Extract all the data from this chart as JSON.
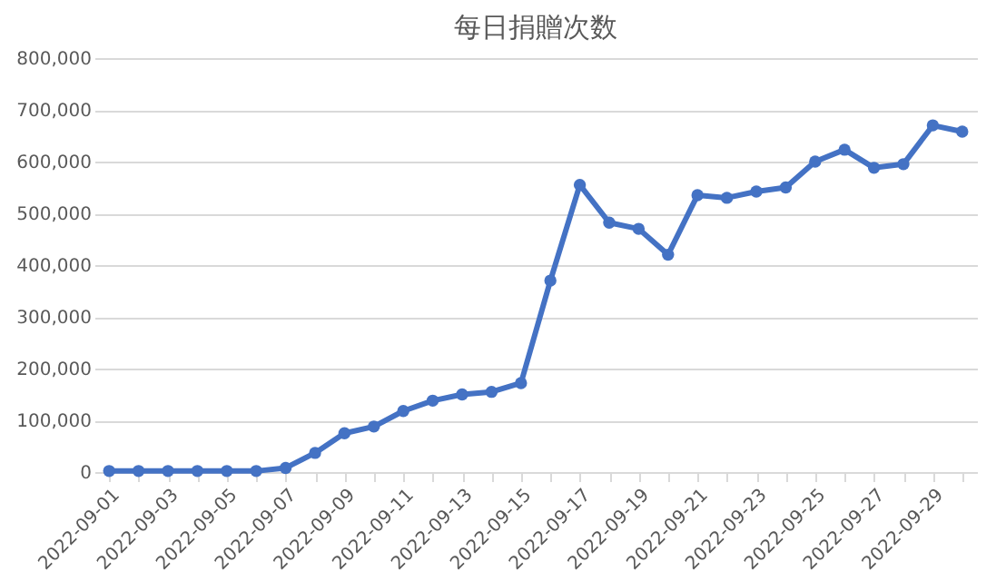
{
  "chart_data": {
    "type": "line",
    "title": "每日捐贈次数",
    "categories": [
      "2022-09-01",
      null,
      "2022-09-03",
      null,
      "2022-09-05",
      null,
      "2022-09-07",
      null,
      "2022-09-09",
      null,
      "2022-09-11",
      null,
      "2022-09-13",
      null,
      "2022-09-15",
      null,
      "2022-09-17",
      null,
      "2022-09-19",
      null,
      "2022-09-21",
      null,
      "2022-09-23",
      null,
      "2022-09-25",
      null,
      "2022-09-27",
      null,
      "2022-09-29",
      null
    ],
    "series": [
      {
        "color": "#4472c4",
        "values": [
          2000,
          2000,
          2000,
          2000,
          2000,
          2000,
          8000,
          37000,
          75000,
          88000,
          118000,
          138000,
          150000,
          155000,
          172000,
          370000,
          555000,
          482000,
          470000,
          420000,
          535000,
          530000,
          542000,
          550000,
          600000,
          623000,
          588000,
          595000,
          670000,
          658000
        ]
      }
    ],
    "ylim": [
      0,
      800000
    ],
    "yticks": [
      {
        "value": 0,
        "label": "0"
      },
      {
        "value": 100000,
        "label": "100,000"
      },
      {
        "value": 200000,
        "label": "200,000"
      },
      {
        "value": 300000,
        "label": "300,000"
      },
      {
        "value": 400000,
        "label": "400,000"
      },
      {
        "value": 500000,
        "label": "500,000"
      },
      {
        "value": 600000,
        "label": "600,000"
      },
      {
        "value": 700000,
        "label": "700,000"
      },
      {
        "value": 800000,
        "label": "800,000"
      }
    ],
    "grid": "y",
    "marker": "circle",
    "line_style": "solid"
  }
}
